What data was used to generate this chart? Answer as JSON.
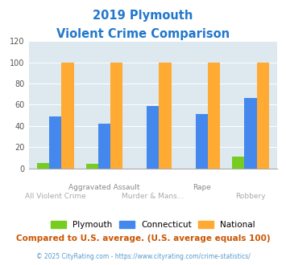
{
  "title_line1": "2019 Plymouth",
  "title_line2": "Violent Crime Comparison",
  "categories": [
    "All Violent Crime",
    "Aggravated Assault",
    "Murder & Mans...",
    "Rape",
    "Robbery"
  ],
  "x_labels_top": [
    "",
    "Aggravated Assault",
    "",
    "Rape",
    ""
  ],
  "x_labels_bottom": [
    "All Violent Crime",
    "",
    "Murder & Mans...",
    "",
    "Robbery"
  ],
  "plymouth": [
    5,
    4,
    0,
    0,
    11
  ],
  "connecticut": [
    49,
    42,
    59,
    51,
    66
  ],
  "national": [
    100,
    100,
    100,
    100,
    100
  ],
  "plymouth_color": "#77cc22",
  "connecticut_color": "#4488ee",
  "national_color": "#ffaa33",
  "ylim": [
    0,
    120
  ],
  "yticks": [
    0,
    20,
    40,
    60,
    80,
    100,
    120
  ],
  "bg_color": "#dde8ef",
  "title_color": "#2277cc",
  "x_top_color": "#888888",
  "x_bot_color": "#aaaaaa",
  "footer_text": "Compared to U.S. average. (U.S. average equals 100)",
  "footer_color": "#cc5500",
  "credit_text": "© 2025 CityRating.com - https://www.cityrating.com/crime-statistics/",
  "credit_color": "#5599cc",
  "legend_labels": [
    "Plymouth",
    "Connecticut",
    "National"
  ],
  "bar_width": 0.25
}
